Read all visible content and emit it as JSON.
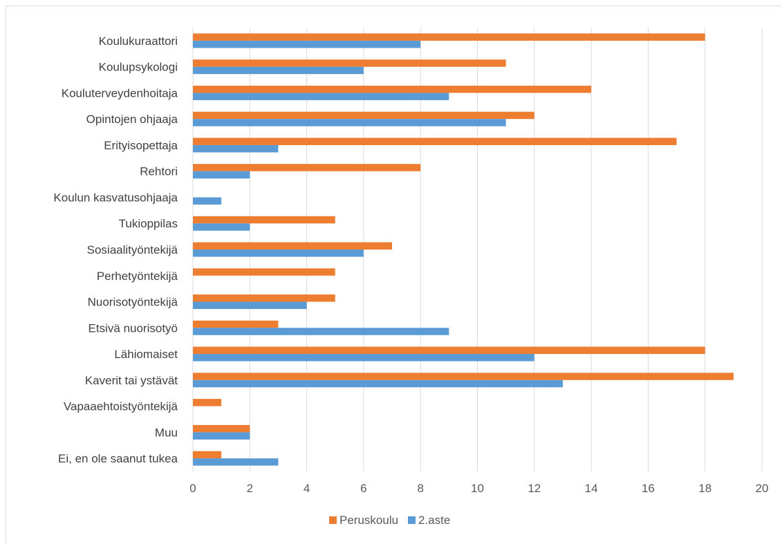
{
  "chart_data": {
    "type": "bar",
    "orientation": "horizontal",
    "categories": [
      "Koulukuraattori",
      "Koulupsykologi",
      "Kouluterveydenhoitaja",
      "Opintojen ohjaaja",
      "Erityisopettaja",
      "Rehtori",
      "Koulun kasvatusohjaaja",
      "Tukioppilas",
      "Sosiaalityöntekijä",
      "Perhetyöntekijä",
      "Nuorisotyöntekijä",
      "Etsivä nuorisotyö",
      "Lähiomaiset",
      "Kaverit tai ystävät",
      "Vapaaehtoistyöntekijä",
      "Muu",
      "Ei, en ole saanut tukea"
    ],
    "series": [
      {
        "name": "Peruskoulu",
        "color": "#ED7D31",
        "values": [
          18,
          11,
          14,
          12,
          17,
          8,
          0,
          5,
          7,
          5,
          5,
          3,
          18,
          19,
          1,
          2,
          1
        ]
      },
      {
        "name": "2.aste",
        "color": "#5B9BD5",
        "values": [
          8,
          6,
          9,
          11,
          3,
          2,
          1,
          2,
          6,
          0,
          4,
          9,
          12,
          13,
          0,
          2,
          3
        ]
      }
    ],
    "xlim": [
      0,
      20
    ],
    "x_ticks": [
      0,
      2,
      4,
      6,
      8,
      10,
      12,
      14,
      16,
      18,
      20
    ],
    "grid": "vertical",
    "legend": "bottom"
  }
}
